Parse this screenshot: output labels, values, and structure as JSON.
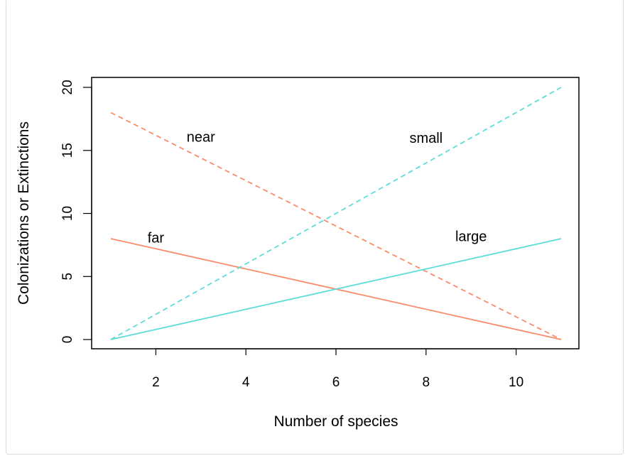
{
  "chart_data": {
    "type": "line",
    "title": "",
    "xlabel": "Number of species",
    "ylabel": "Colonizations or Extinctions",
    "xlim": [
      1,
      11
    ],
    "ylim": [
      0,
      20
    ],
    "x_ticks": [
      2,
      4,
      6,
      8,
      10
    ],
    "y_ticks": [
      0,
      5,
      10,
      15,
      20
    ],
    "x_tick_labels": [
      "2",
      "4",
      "6",
      "8",
      "10"
    ],
    "y_tick_labels": [
      "0",
      "5",
      "10",
      "15",
      "20"
    ],
    "grid": false,
    "series": [
      {
        "name": "near",
        "x": [
          1,
          11
        ],
        "y": [
          18,
          0
        ],
        "color": "#FA8C6C",
        "style": "dashed"
      },
      {
        "name": "far",
        "x": [
          1,
          11
        ],
        "y": [
          8,
          0
        ],
        "color": "#FA8C6C",
        "style": "solid"
      },
      {
        "name": "small",
        "x": [
          1,
          11
        ],
        "y": [
          0,
          20
        ],
        "color": "#5EDDD8",
        "style": "dashed"
      },
      {
        "name": "large",
        "x": [
          1,
          11
        ],
        "y": [
          0,
          8
        ],
        "color": "#5EDDD8",
        "style": "solid"
      }
    ],
    "annotations": [
      {
        "text": "near",
        "x": 3.0,
        "y": 16.0
      },
      {
        "text": "small",
        "x": 8.0,
        "y": 15.9
      },
      {
        "text": "far",
        "x": 2.0,
        "y": 8.0
      },
      {
        "text": "large",
        "x": 9.0,
        "y": 8.1
      }
    ]
  }
}
